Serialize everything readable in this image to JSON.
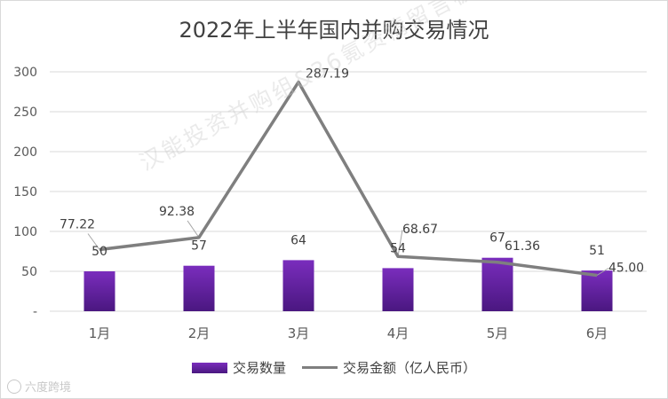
{
  "chart_data": {
    "type": "bar+line",
    "title": "2022年上半年国内并购交易情况",
    "categories": [
      "1月",
      "2月",
      "3月",
      "4月",
      "5月",
      "6月"
    ],
    "series": [
      {
        "name": "交易数量",
        "type": "bar",
        "values": [
          50,
          57,
          64,
          54,
          67,
          51
        ],
        "labels": [
          "50",
          "57",
          "64",
          "54",
          "67",
          "51"
        ],
        "color": "#6a23a8"
      },
      {
        "name": "交易金额（亿人民币）",
        "type": "line",
        "values": [
          77.22,
          92.38,
          287.19,
          68.67,
          61.36,
          45.0
        ],
        "labels": [
          "77.22",
          "92.38",
          "287.19",
          "68.67",
          "61.36",
          "45.00"
        ],
        "color": "#7f7f7f"
      }
    ],
    "yticks": [
      "-",
      "50",
      "100",
      "150",
      "200",
      "250",
      "300"
    ],
    "ylim": [
      0,
      300
    ],
    "grid": true,
    "legend_position": "bottom"
  },
  "watermark": "汉能投资并购组&36氪资情留言板",
  "brand": "六度跨境"
}
